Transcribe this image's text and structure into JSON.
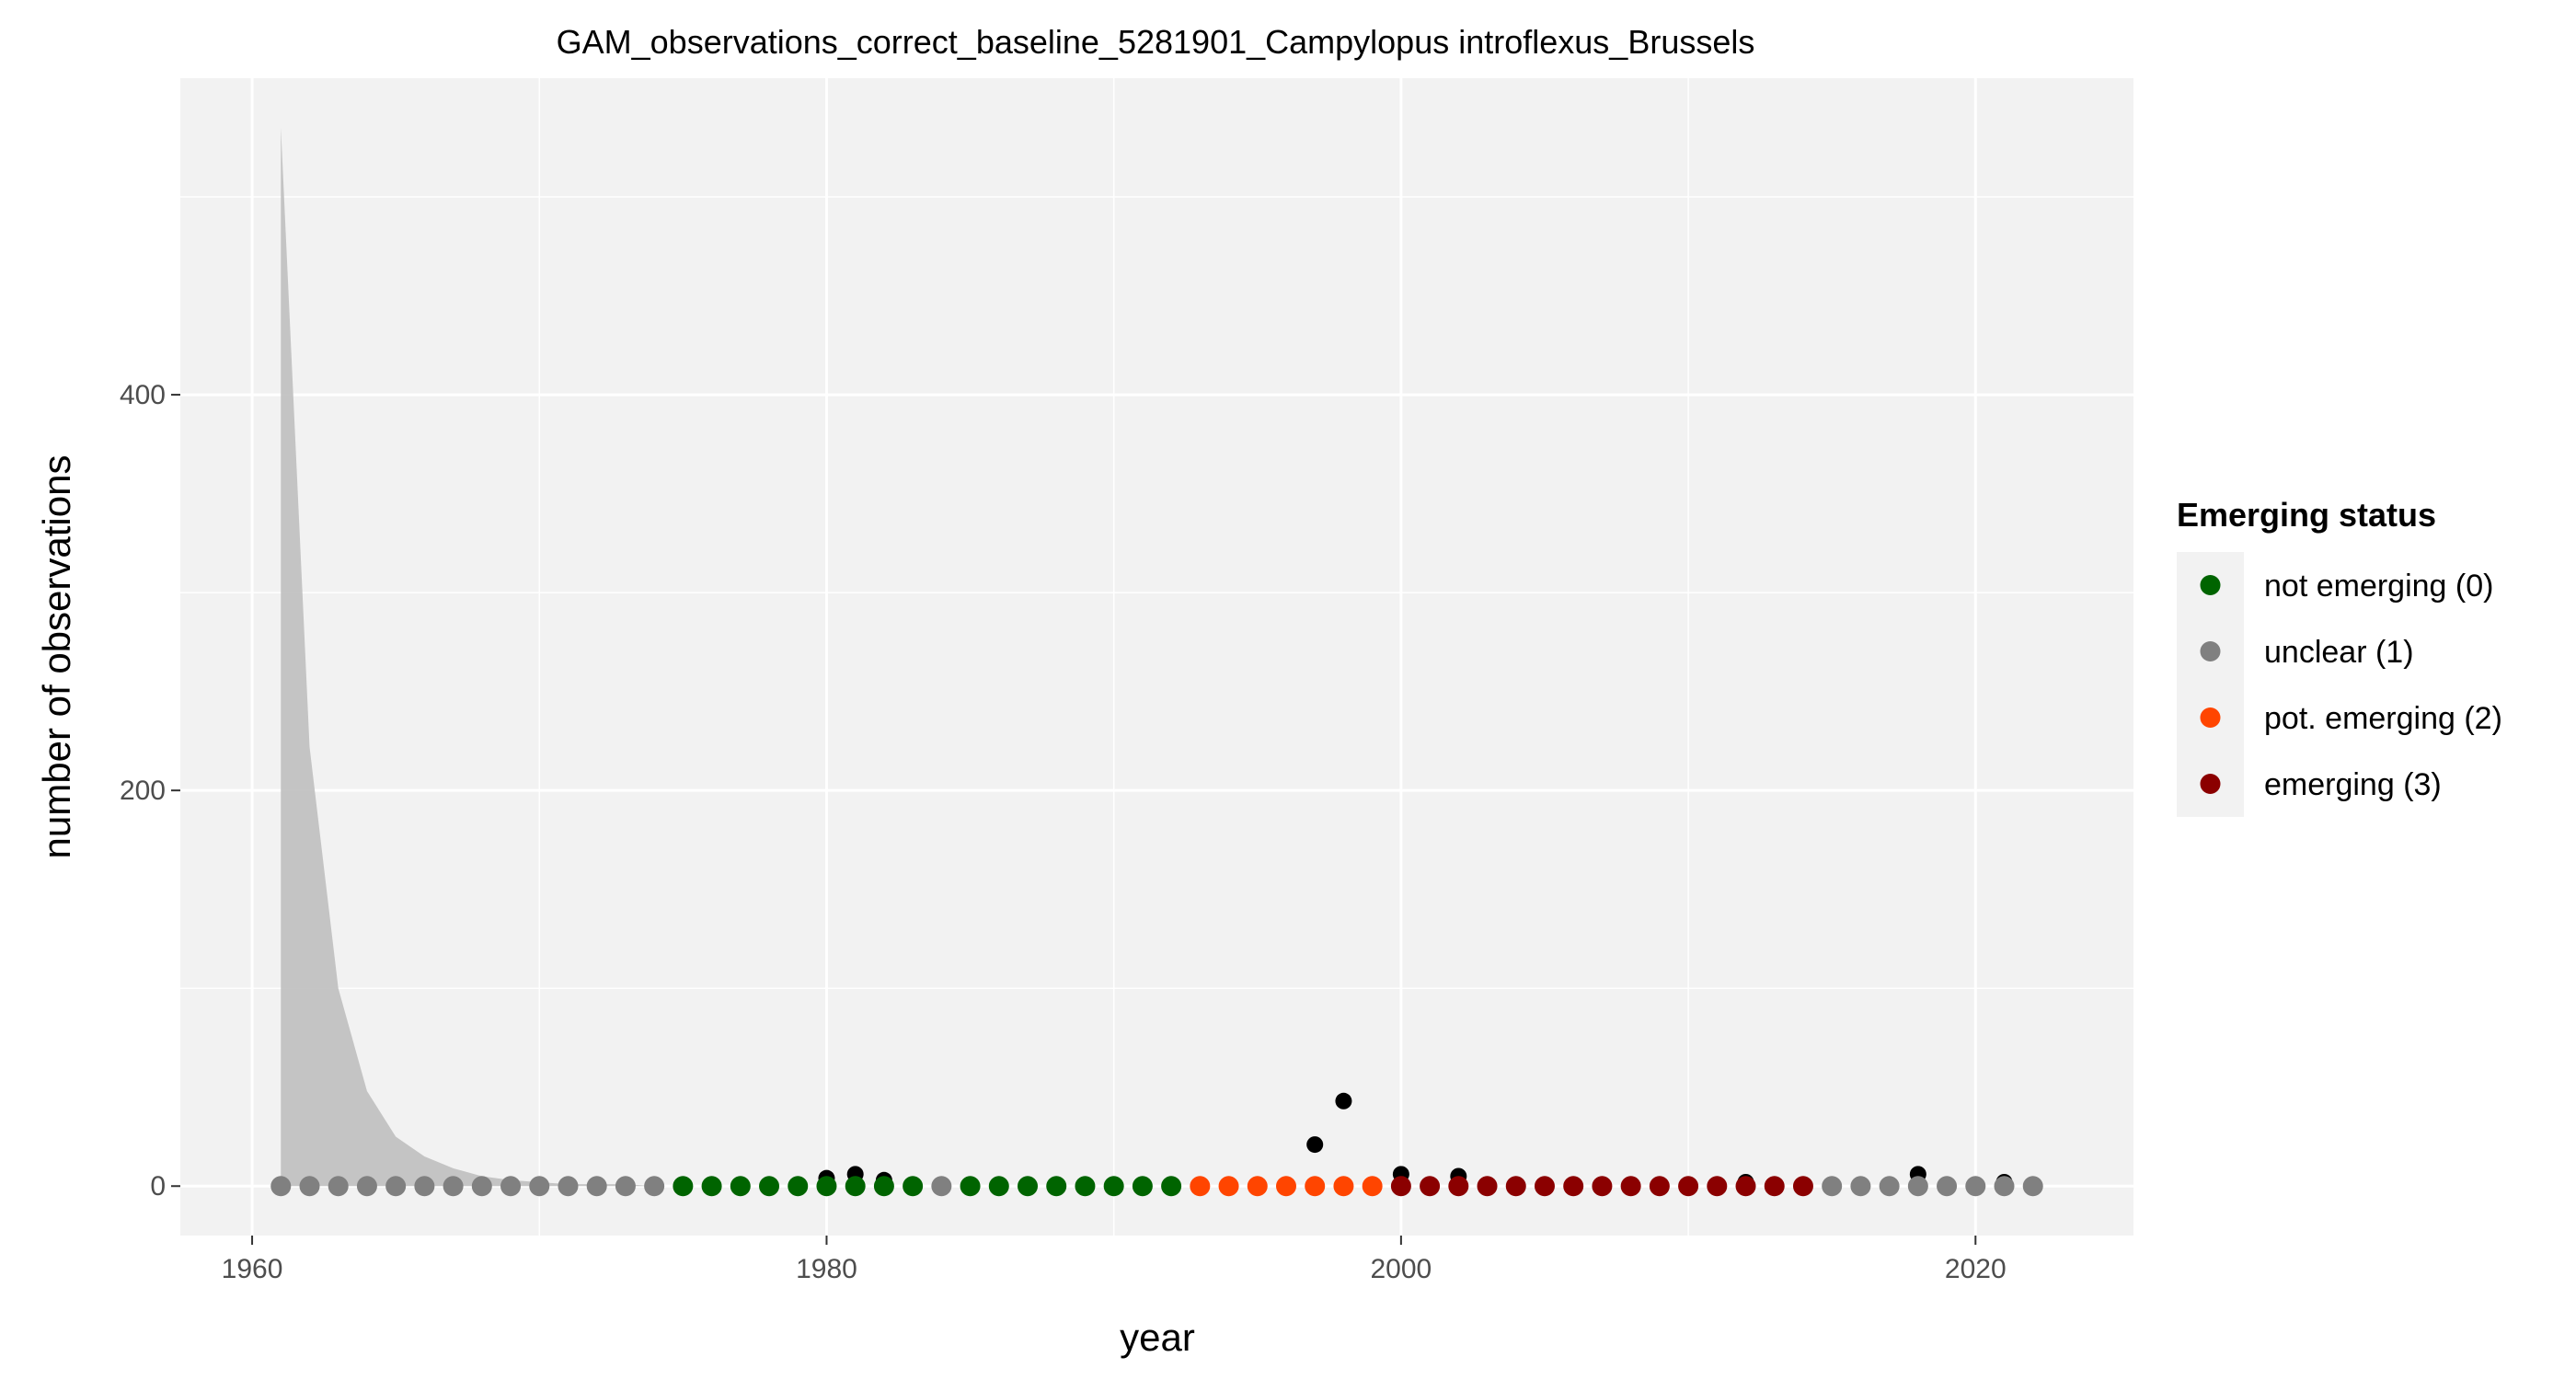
{
  "chart_data": {
    "type": "scatter",
    "title": "GAM_observations_correct_baseline_5281901_Campylopus introflexus_Brussels",
    "xlabel": "year",
    "ylabel": "number of observations",
    "xlim": [
      1957.5,
      2025.5
    ],
    "ylim": [
      -25,
      560
    ],
    "x_ticks": [
      1960,
      1980,
      2000,
      2020
    ],
    "y_ticks": [
      0,
      200,
      400
    ],
    "grid": true,
    "legend_position": "right",
    "observations": {
      "color": "#000000",
      "x": [
        1961,
        1962,
        1963,
        1964,
        1965,
        1966,
        1967,
        1968,
        1969,
        1970,
        1971,
        1972,
        1973,
        1974,
        1975,
        1976,
        1977,
        1978,
        1979,
        1980,
        1981,
        1982,
        1983,
        1984,
        1985,
        1986,
        1987,
        1988,
        1989,
        1990,
        1991,
        1992,
        1993,
        1994,
        1995,
        1996,
        1997,
        1998,
        1999,
        2000,
        2001,
        2002,
        2003,
        2004,
        2005,
        2006,
        2007,
        2008,
        2009,
        2010,
        2011,
        2012,
        2013,
        2014,
        2015,
        2016,
        2017,
        2018,
        2019,
        2020,
        2021,
        2022
      ],
      "y": [
        0,
        0,
        0,
        0,
        0,
        0,
        0,
        0,
        0,
        0,
        0,
        0,
        0,
        0,
        0,
        0,
        0,
        0,
        0,
        4,
        6,
        3,
        0,
        0,
        0,
        0,
        0,
        0,
        0,
        0,
        0,
        0,
        0,
        0,
        0,
        0,
        21,
        43,
        0,
        6,
        0,
        5,
        0,
        0,
        0,
        0,
        0,
        0,
        0,
        0,
        0,
        2,
        0,
        0,
        0,
        0,
        0,
        6,
        0,
        0,
        2,
        0
      ]
    },
    "confidence_band": {
      "color": "#bfbfbf",
      "x": [
        1961,
        1962,
        1963,
        1964,
        1965,
        1966,
        1967,
        1968,
        1969,
        1970,
        1971,
        1972,
        1973,
        1974,
        1975,
        1976,
        1977,
        1978,
        1979,
        1980,
        1981,
        1982,
        1983,
        1984,
        1985,
        1986,
        1987,
        1988,
        1989,
        1990,
        1991,
        1992,
        1993,
        1994,
        1995,
        1996,
        1997,
        1998,
        1999,
        2000,
        2001,
        2002,
        2003,
        2004,
        2005,
        2006,
        2007,
        2008,
        2009,
        2010,
        2011,
        2012,
        2013,
        2014,
        2015,
        2016,
        2017,
        2018,
        2019,
        2020,
        2021,
        2022
      ],
      "lower": [
        0,
        0,
        0,
        0,
        0,
        0,
        0,
        0,
        0,
        0,
        0,
        0,
        0,
        0,
        0,
        0,
        0,
        0,
        0,
        0,
        0,
        0,
        0,
        0,
        0,
        0,
        0,
        0,
        0,
        0,
        0,
        0,
        0,
        0,
        0,
        0,
        0,
        0,
        0,
        0,
        0,
        0,
        0,
        0,
        0,
        0,
        0,
        0,
        0,
        0,
        0,
        0,
        0,
        0,
        0,
        0,
        0,
        0,
        0,
        0,
        0,
        0
      ],
      "upper": [
        535,
        222,
        100,
        48,
        25,
        15,
        9,
        5,
        3,
        2,
        1,
        1,
        1,
        0,
        0,
        0,
        0,
        0,
        0,
        0,
        0,
        0,
        0,
        0,
        0,
        0,
        0,
        0,
        0,
        0,
        0,
        0,
        0,
        0,
        0,
        0,
        0,
        0,
        0,
        0,
        0,
        0,
        0,
        0,
        0,
        0,
        0,
        0,
        0,
        0,
        0,
        0,
        0,
        0,
        0,
        0,
        0,
        0,
        0,
        0,
        0,
        0
      ]
    },
    "status_points": {
      "x": [
        1961,
        1962,
        1963,
        1964,
        1965,
        1966,
        1967,
        1968,
        1969,
        1970,
        1971,
        1972,
        1973,
        1974,
        1975,
        1976,
        1977,
        1978,
        1979,
        1980,
        1981,
        1982,
        1983,
        1984,
        1985,
        1986,
        1987,
        1988,
        1989,
        1990,
        1991,
        1992,
        1993,
        1994,
        1995,
        1996,
        1997,
        1998,
        1999,
        2000,
        2001,
        2002,
        2003,
        2004,
        2005,
        2006,
        2007,
        2008,
        2009,
        2010,
        2011,
        2012,
        2013,
        2014,
        2015,
        2016,
        2017,
        2018,
        2019,
        2020,
        2021,
        2022
      ],
      "y": [
        0,
        0,
        0,
        0,
        0,
        0,
        0,
        0,
        0,
        0,
        0,
        0,
        0,
        0,
        0,
        0,
        0,
        0,
        0,
        0,
        0,
        0,
        0,
        0,
        0,
        0,
        0,
        0,
        0,
        0,
        0,
        0,
        0,
        0,
        0,
        0,
        0,
        0,
        0,
        0,
        0,
        0,
        0,
        0,
        0,
        0,
        0,
        0,
        0,
        0,
        0,
        0,
        0,
        0,
        0,
        0,
        0,
        0,
        0,
        0,
        0,
        0
      ],
      "status": [
        1,
        1,
        1,
        1,
        1,
        1,
        1,
        1,
        1,
        1,
        1,
        1,
        1,
        1,
        0,
        0,
        0,
        0,
        0,
        0,
        0,
        0,
        0,
        1,
        0,
        0,
        0,
        0,
        0,
        0,
        0,
        0,
        2,
        2,
        2,
        2,
        2,
        2,
        2,
        3,
        3,
        3,
        3,
        3,
        3,
        3,
        3,
        3,
        3,
        3,
        3,
        3,
        3,
        3,
        1,
        1,
        1,
        1,
        1,
        1,
        1,
        1
      ]
    },
    "legend": {
      "title": "Emerging status",
      "entries": [
        {
          "code": 0,
          "label": "not emerging (0)",
          "color": "#006400"
        },
        {
          "code": 1,
          "label": "unclear (1)",
          "color": "#808080"
        },
        {
          "code": 2,
          "label": "pot. emerging (2)",
          "color": "#ff4500"
        },
        {
          "code": 3,
          "label": "emerging (3)",
          "color": "#8b0000"
        }
      ]
    },
    "panel_background": "#f2f2f2",
    "grid_color": "#ffffff"
  }
}
